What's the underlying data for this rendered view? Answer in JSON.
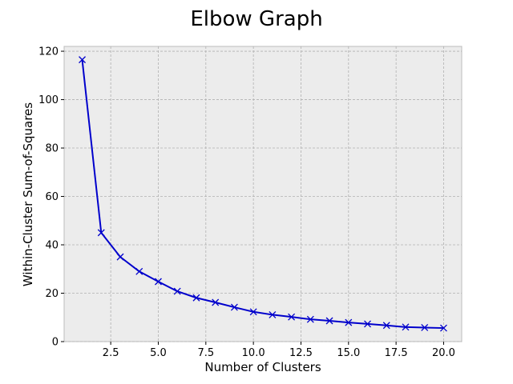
{
  "chart_data": {
    "type": "line",
    "title": "Elbow Graph",
    "xlabel": "Number of Clusters",
    "ylabel": "Within-Cluster Sum-of-Squares",
    "xlim": [
      0.05,
      20.95
    ],
    "ylim": [
      0,
      122
    ],
    "xticks": [
      2.5,
      5.0,
      7.5,
      10.0,
      12.5,
      15.0,
      17.5,
      20.0
    ],
    "xtick_labels": [
      "2.5",
      "5.0",
      "7.5",
      "10.0",
      "12.5",
      "15.0",
      "17.5",
      "20.0"
    ],
    "yticks": [
      0,
      20,
      40,
      60,
      80,
      100,
      120
    ],
    "ytick_labels": [
      "0",
      "20",
      "40",
      "60",
      "80",
      "100",
      "120"
    ],
    "grid": true,
    "series": [
      {
        "marker": "x",
        "color": "#0000cc",
        "x": [
          1,
          2,
          3,
          4,
          5,
          6,
          7,
          8,
          9,
          10,
          11,
          12,
          13,
          14,
          15,
          16,
          17,
          18,
          19,
          20
        ],
        "y": [
          116.5,
          45.0,
          35.0,
          29.0,
          24.8,
          20.8,
          18.1,
          16.2,
          14.2,
          12.3,
          11.1,
          10.2,
          9.2,
          8.6,
          7.9,
          7.3,
          6.7,
          6.0,
          5.8,
          5.6
        ]
      }
    ],
    "colors": {
      "background": "#ffffff",
      "plot_background": "#ececec",
      "grid": "#b0b0b0",
      "line": "#0000cc"
    }
  }
}
